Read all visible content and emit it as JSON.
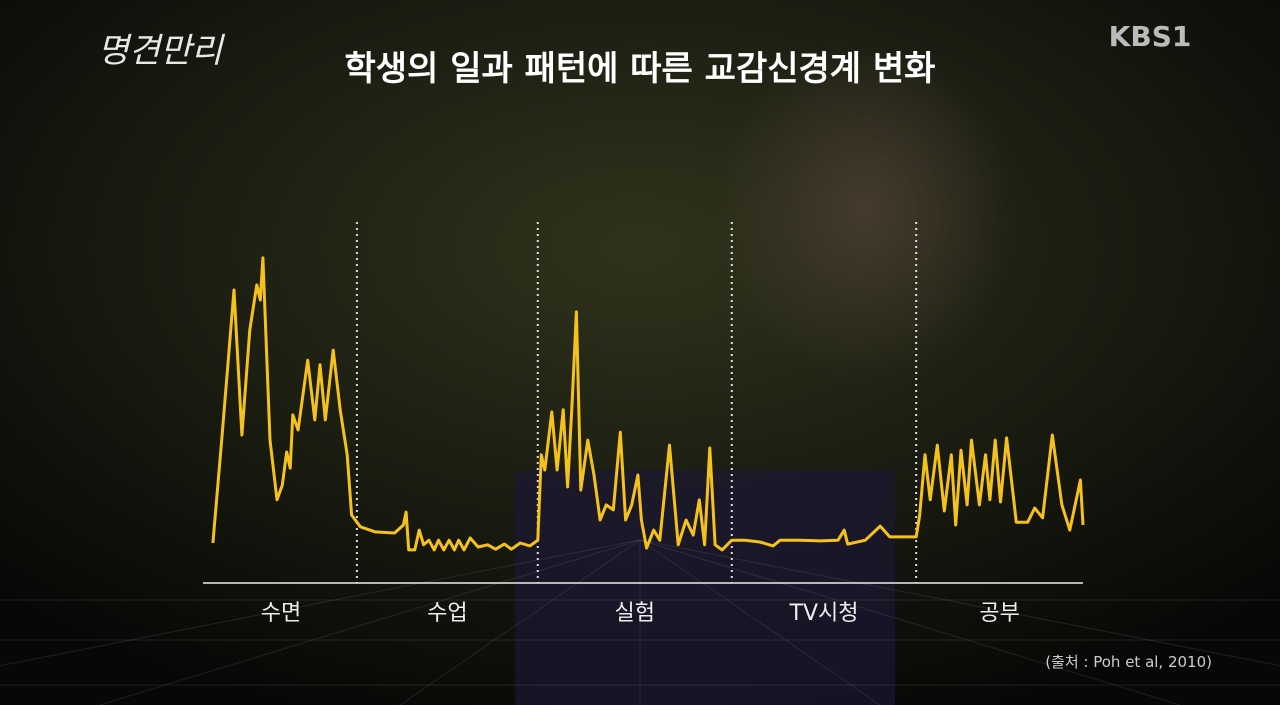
{
  "logo": "명견만리",
  "channel": "KBS1",
  "source": "(출처 : Poh et al, 2010)",
  "chart_data": {
    "type": "line",
    "title": "학생의 일과 패턴에 따른 교감신경계 변화",
    "categories": [
      "수면",
      "수업",
      "실험",
      "TV시청",
      "공부"
    ],
    "dividers": [
      17.3,
      37.9,
      60.0,
      81.0
    ],
    "xlim": [
      0,
      100
    ],
    "ylim": [
      0,
      100
    ],
    "color": "#f5c21b",
    "x": [
      0.9,
      1.9,
      3.3,
      4.2,
      5.1,
      5.9,
      6.3,
      6.6,
      7.4,
      8.2,
      8.8,
      9.3,
      9.7,
      10.0,
      10.6,
      11.7,
      12.5,
      13.1,
      13.7,
      14.6,
      15.4,
      16.2,
      16.7,
      17.7,
      19.4,
      21.6,
      22.6,
      22.9,
      23.2,
      23.9,
      24.4,
      24.9,
      25.5,
      26.1,
      26.6,
      27.2,
      27.8,
      28.4,
      28.9,
      29.5,
      30.2,
      31.1,
      32.2,
      33.1,
      34.1,
      34.9,
      35.9,
      37.0,
      37.9,
      38.3,
      38.7,
      39.5,
      40.1,
      40.8,
      41.3,
      41.8,
      42.3,
      42.8,
      43.6,
      44.3,
      45.0,
      45.7,
      46.5,
      47.3,
      47.9,
      48.6,
      49.3,
      49.7,
      50.3,
      51.1,
      51.8,
      52.9,
      53.9,
      54.8,
      55.6,
      56.3,
      56.9,
      57.5,
      58.1,
      58.9,
      60.0,
      61.5,
      63.2,
      64.7,
      65.5,
      67.8,
      70.1,
      72.1,
      72.8,
      73.2,
      75.2,
      76.9,
      78.0,
      81.0,
      81.4,
      82.0,
      82.6,
      83.4,
      84.2,
      85.0,
      85.5,
      86.1,
      86.8,
      87.3,
      88.2,
      88.9,
      89.4,
      90.0,
      90.6,
      91.3,
      92.4,
      93.7,
      94.5,
      95.4,
      96.5,
      97.6,
      98.5,
      99.7,
      100.0
    ],
    "values": [
      11.1,
      39.7,
      81.4,
      41.1,
      70.3,
      82.8,
      78.6,
      90.3,
      39.7,
      23.1,
      27.2,
      36.4,
      31.9,
      46.7,
      42.5,
      61.9,
      45.3,
      60.6,
      45.3,
      64.7,
      48.1,
      35.6,
      18.9,
      15.6,
      14.2,
      13.9,
      16.1,
      19.7,
      9.2,
      9.2,
      14.7,
      10.6,
      11.9,
      9.2,
      11.9,
      9.2,
      11.9,
      9.2,
      11.9,
      9.2,
      12.5,
      10.0,
      10.6,
      9.4,
      10.8,
      9.4,
      11.1,
      10.3,
      11.9,
      35.6,
      31.4,
      47.5,
      31.4,
      48.1,
      26.7,
      49.4,
      75.3,
      25.8,
      39.7,
      30.0,
      17.5,
      21.7,
      20.3,
      41.9,
      17.5,
      21.7,
      30.0,
      17.5,
      9.7,
      14.7,
      11.9,
      38.3,
      10.6,
      17.5,
      13.3,
      23.1,
      10.6,
      37.5,
      10.6,
      9.2,
      11.9,
      11.9,
      11.4,
      10.3,
      11.9,
      11.9,
      11.7,
      11.9,
      14.7,
      10.8,
      11.9,
      15.8,
      12.8,
      12.8,
      18.9,
      35.6,
      23.1,
      38.3,
      20.0,
      35.6,
      16.1,
      36.9,
      21.7,
      39.7,
      21.7,
      35.6,
      23.1,
      39.7,
      22.5,
      40.3,
      16.9,
      16.9,
      20.8,
      18.1,
      41.1,
      21.7,
      14.7,
      28.6,
      16.1
    ]
  }
}
